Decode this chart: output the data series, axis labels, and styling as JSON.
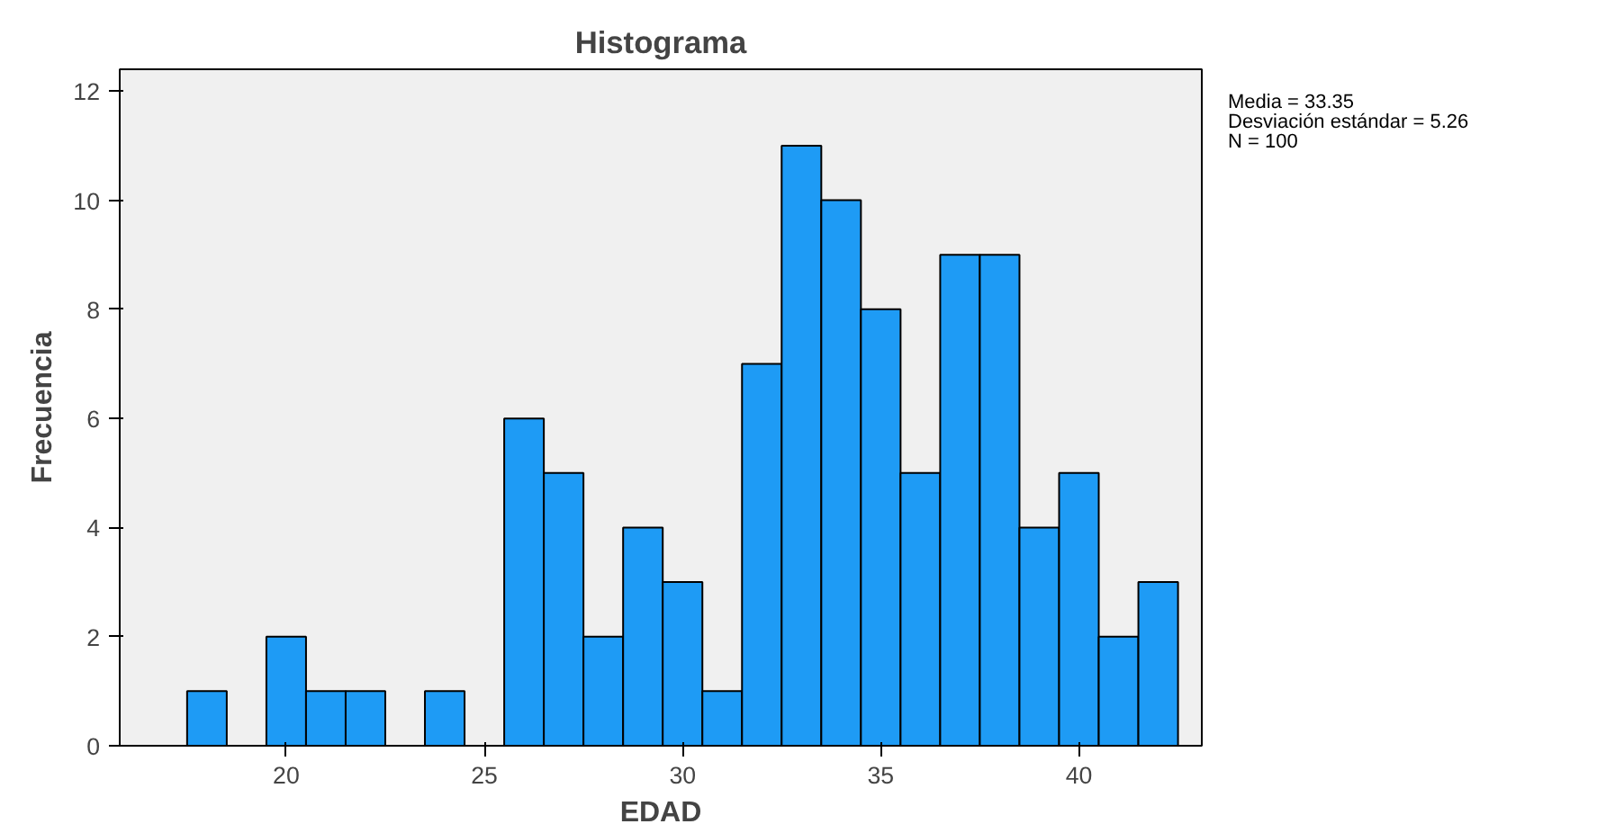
{
  "chart_data": {
    "type": "histogram",
    "title": "Histograma",
    "xlabel": "EDAD",
    "ylabel": "Frecuencia",
    "bins": [
      17.5,
      18.5,
      19.5,
      20.5,
      21.5,
      22.5,
      23.5,
      24.5,
      25.5,
      26.5,
      27.5,
      28.5,
      29.5,
      30.5,
      31.5,
      32.5,
      33.5,
      34.5,
      35.5,
      36.5,
      37.5,
      38.5,
      39.5,
      40.5,
      41.5,
      42.5
    ],
    "values": [
      1,
      0,
      2,
      1,
      1,
      0,
      1,
      0,
      6,
      5,
      2,
      4,
      3,
      1,
      7,
      11,
      10,
      8,
      5,
      9,
      9,
      4,
      5,
      2,
      3
    ],
    "color": "#1e9bf5",
    "xlim": [
      15.8,
      43.1
    ],
    "xticks": [
      20,
      25,
      30,
      35,
      40
    ],
    "ylim": [
      0,
      12.4
    ],
    "yticks": [
      0,
      2,
      4,
      6,
      8,
      10,
      12
    ],
    "grid": false,
    "annotations": [
      "Media = 33.35",
      "Desviación estándar = 5.26",
      "N = 100"
    ]
  }
}
